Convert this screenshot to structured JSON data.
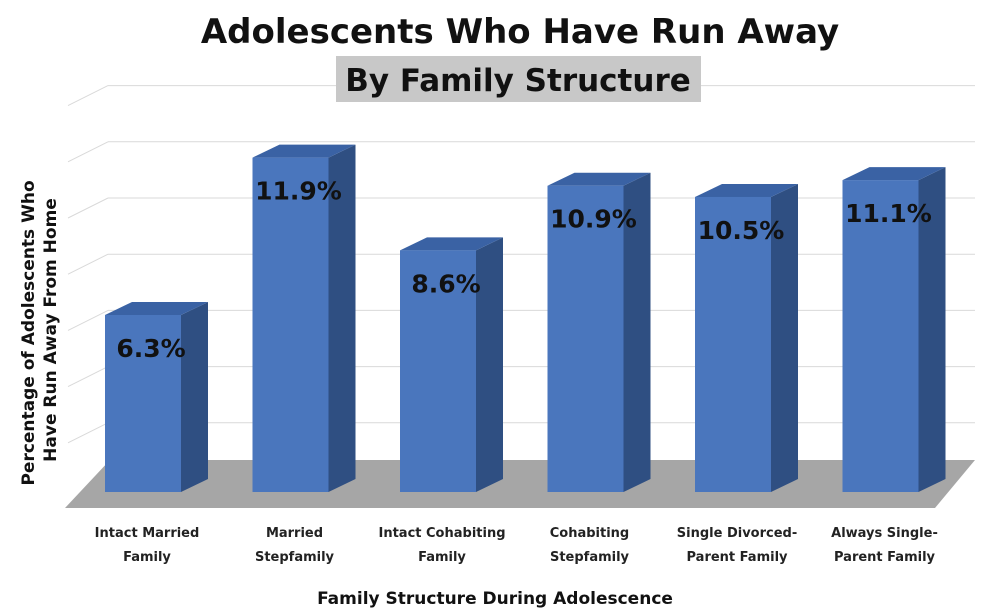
{
  "chart_data": {
    "type": "bar",
    "title": "Adolescents Who Have Run Away",
    "subtitle": "By Family Structure",
    "xlabel": "Family Structure During Adolescence",
    "ylabel": "Percentage of Adolescents Who Have Run Away From Home",
    "ylabel_lines": [
      "Percentage of Adolescents Who",
      "Have Run Away From Home"
    ],
    "categories": [
      "Intact Married Family",
      "Married Stepfamily",
      "Intact Cohabiting Family",
      "Cohabiting Stepfamily",
      "Single Divorced-Parent Family",
      "Always Single-Parent Family"
    ],
    "category_lines": [
      [
        "Intact Married",
        "Family"
      ],
      [
        "Married",
        "Stepfamily"
      ],
      [
        "Intact Cohabiting",
        "Family"
      ],
      [
        "Cohabiting",
        "Stepfamily"
      ],
      [
        "Single Divorced-",
        "Parent Family"
      ],
      [
        "Always Single-",
        "Parent Family"
      ]
    ],
    "values": [
      6.3,
      11.9,
      8.6,
      10.9,
      10.5,
      11.1
    ],
    "data_labels": [
      "6.3%",
      "11.9%",
      "8.6%",
      "10.9%",
      "10.5%",
      "11.1%"
    ],
    "ylim": [
      0,
      14
    ],
    "grid": true,
    "style": "3d-column",
    "colors": {
      "bar_front": "#4a76bd",
      "bar_side": "#2f4f82",
      "bar_top": "#3a62a4",
      "floor": "#a6a6a6",
      "gridline": "#d9d9d9",
      "subtitle_box": "#c8c8c8"
    }
  }
}
